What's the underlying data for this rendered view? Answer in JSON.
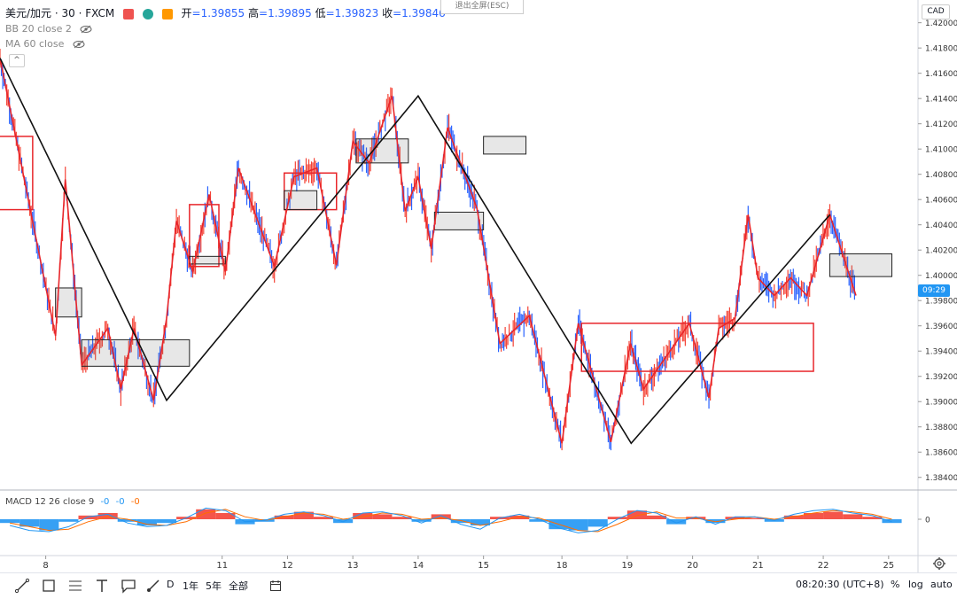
{
  "header": {
    "symbol_title": "美元/加元 · 30 · FXCM",
    "ohlc": {
      "open_label": "开",
      "open": "=1.39855",
      "high_label": "高",
      "high": "=1.39895",
      "low_label": "低",
      "low": "=1.39823",
      "close_label": "收",
      "close": "=1.39846"
    },
    "exit_fullscreen": "退出全屏(ESC)",
    "currency": "CAD",
    "dot_colors": [
      "#ef5350",
      "#26a69a",
      "#ff9800"
    ]
  },
  "indicators": {
    "bb": "BB 20 close 2",
    "ma": "MA 60 close",
    "macd_label": "MACD 12 26 close 9",
    "macd_values": [
      "-0",
      "-0",
      "-0"
    ]
  },
  "price_tag": "09:29",
  "colors": {
    "zigzag_red": "#e8262b",
    "zigzag_black": "#111111",
    "candle_up": "#f44336",
    "candle_down": "#2962ff",
    "macd_pos": "#f44336",
    "macd_neg": "#2196f3",
    "macd_line": "#2196f3",
    "signal_line": "#ff6d00"
  },
  "toolbar": {
    "ranges": [
      "D",
      "1年",
      "5年",
      "全部"
    ],
    "time": "08:20:30 (UTC+8)",
    "percent": "%",
    "log": "log",
    "auto": "auto"
  },
  "chart_data": {
    "type": "line",
    "y_axis": {
      "ticks": [
        "1.42000",
        "1.41800",
        "1.41600",
        "1.41400",
        "1.41200",
        "1.41000",
        "1.40800",
        "1.40600",
        "1.40400",
        "1.40200",
        "1.40000",
        "1.39800",
        "1.39600",
        "1.39400",
        "1.39200",
        "1.39000",
        "1.38800",
        "1.38600",
        "1.38400"
      ],
      "ylim": [
        1.383,
        1.4218
      ]
    },
    "x_axis": {
      "ticks": [
        "8",
        "11",
        "12",
        "13",
        "14",
        "15",
        "18",
        "19",
        "20",
        "21",
        "22",
        "25"
      ],
      "tick_pos": [
        0.7,
        3.4,
        4.4,
        5.4,
        6.4,
        7.4,
        8.6,
        9.6,
        10.6,
        11.6,
        12.6,
        13.6
      ],
      "xlim": [
        0,
        14.05
      ]
    },
    "series": [
      {
        "style": "black-zigzag",
        "x": [
          0.0,
          2.55,
          6.4,
          9.66,
          12.7
        ],
        "y": [
          1.4172,
          1.3901,
          1.4142,
          1.3867,
          1.4048
        ]
      },
      {
        "style": "red-zigzag",
        "x": [
          0.0,
          0.85,
          1.0,
          1.25,
          1.65,
          1.85,
          2.05,
          2.35,
          2.55,
          2.7,
          2.95,
          3.2,
          3.45,
          3.65,
          4.2,
          4.5,
          4.85,
          5.15,
          5.4,
          5.65,
          6.0,
          6.2,
          6.4,
          6.6,
          6.85,
          7.3,
          7.65,
          8.1,
          8.6,
          8.85,
          9.35,
          9.65,
          9.85,
          10.55,
          10.85,
          11.0,
          11.25,
          11.45,
          11.6,
          11.85,
          12.1,
          12.35,
          12.7,
          13.1
        ],
        "y": [
          1.4172,
          1.3952,
          1.4076,
          1.3929,
          1.3958,
          1.391,
          1.3958,
          1.3901,
          1.3966,
          1.4043,
          1.4003,
          1.4064,
          1.4003,
          1.4085,
          1.4007,
          1.4078,
          1.4085,
          1.4008,
          1.4106,
          1.4089,
          1.4142,
          1.4051,
          1.4078,
          1.4021,
          1.4117,
          1.4053,
          1.3946,
          1.3968,
          1.3867,
          1.3962,
          1.3868,
          1.3946,
          1.391,
          1.3962,
          1.3903,
          1.3958,
          1.3966,
          1.4048,
          1.3998,
          1.3984,
          1.3998,
          1.3984,
          1.4048,
          1.3984
        ]
      }
    ],
    "boxes": [
      {
        "style": "red",
        "x0": -0.1,
        "x1": 0.5,
        "y0": 1.4052,
        "y1": 1.411
      },
      {
        "style": "grey",
        "x0": 0.85,
        "x1": 1.25,
        "y0": 1.3967,
        "y1": 1.399
      },
      {
        "style": "grey",
        "x0": 1.25,
        "x1": 2.9,
        "y0": 1.3928,
        "y1": 1.3949
      },
      {
        "style": "red",
        "x0": 2.9,
        "x1": 3.35,
        "y0": 1.4007,
        "y1": 1.4056
      },
      {
        "style": "grey",
        "x0": 2.9,
        "x1": 3.45,
        "y0": 1.4009,
        "y1": 1.4015
      },
      {
        "style": "red",
        "x0": 4.35,
        "x1": 5.15,
        "y0": 1.4052,
        "y1": 1.4081
      },
      {
        "style": "grey",
        "x0": 4.35,
        "x1": 4.85,
        "y0": 1.4052,
        "y1": 1.4067
      },
      {
        "style": "grey",
        "x0": 5.45,
        "x1": 6.25,
        "y0": 1.4089,
        "y1": 1.4108
      },
      {
        "style": "grey",
        "x0": 6.65,
        "x1": 7.4,
        "y0": 1.4036,
        "y1": 1.405
      },
      {
        "style": "grey",
        "x0": 7.4,
        "x1": 8.05,
        "y0": 1.4096,
        "y1": 1.411
      },
      {
        "style": "red",
        "x0": 8.9,
        "x1": 12.45,
        "y0": 1.3924,
        "y1": 1.3962
      },
      {
        "style": "grey",
        "x0": 12.7,
        "x1": 13.65,
        "y0": 1.3999,
        "y1": 1.4017
      }
    ],
    "macd_hist_x": [
      0.0,
      0.3,
      0.6,
      0.9,
      1.2,
      1.5,
      1.8,
      2.1,
      2.4,
      2.7,
      3.0,
      3.3,
      3.6,
      3.9,
      4.2,
      4.5,
      4.8,
      5.1,
      5.4,
      5.7,
      6.0,
      6.3,
      6.6,
      6.9,
      7.2,
      7.5,
      7.8,
      8.1,
      8.4,
      8.7,
      9.0,
      9.3,
      9.6,
      9.9,
      10.2,
      10.5,
      10.8,
      11.1,
      11.4,
      11.7,
      12.0,
      12.3,
      12.6,
      12.9,
      13.2,
      13.5
    ],
    "macd_hist": [
      -0.3,
      -0.6,
      -0.9,
      -0.2,
      0.3,
      0.5,
      -0.2,
      -0.5,
      -0.3,
      0.2,
      0.8,
      0.5,
      -0.4,
      -0.2,
      0.3,
      0.6,
      0.2,
      -0.3,
      0.5,
      0.4,
      0.2,
      -0.2,
      0.4,
      -0.3,
      -0.5,
      0.2,
      0.3,
      -0.2,
      -0.8,
      -0.9,
      -0.6,
      0.2,
      0.7,
      0.3,
      -0.4,
      0.2,
      -0.3,
      0.2,
      0.1,
      -0.2,
      0.3,
      0.5,
      0.6,
      0.4,
      0.2,
      -0.3
    ],
    "macd_line": [
      -0.5,
      -0.9,
      -1.0,
      -0.6,
      0.2,
      0.4,
      -0.3,
      -0.6,
      -0.5,
      0.1,
      0.9,
      0.7,
      -0.2,
      -0.1,
      0.4,
      0.6,
      0.3,
      -0.2,
      0.5,
      0.6,
      0.3,
      -0.3,
      0.3,
      -0.4,
      -0.8,
      0.1,
      0.4,
      0.0,
      -0.7,
      -1.1,
      -0.9,
      0.0,
      0.7,
      0.5,
      -0.3,
      0.2,
      -0.4,
      0.2,
      0.2,
      -0.1,
      0.4,
      0.7,
      0.8,
      0.5,
      0.3,
      -0.2
    ],
    "macd_signal": [
      -0.3,
      -0.6,
      -0.9,
      -0.8,
      -0.2,
      0.2,
      0.0,
      -0.4,
      -0.5,
      -0.2,
      0.5,
      0.8,
      0.2,
      -0.1,
      0.2,
      0.5,
      0.4,
      0.0,
      0.2,
      0.5,
      0.4,
      0.0,
      0.1,
      -0.1,
      -0.5,
      -0.2,
      0.2,
      0.1,
      -0.4,
      -0.9,
      -1.0,
      -0.4,
      0.3,
      0.6,
      0.1,
      0.1,
      -0.2,
      0.0,
      0.2,
      0.0,
      0.2,
      0.5,
      0.7,
      0.6,
      0.4,
      0.0
    ]
  }
}
